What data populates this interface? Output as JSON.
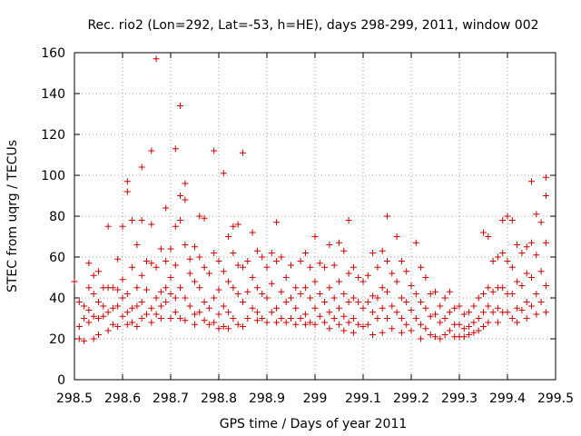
{
  "chart_data": {
    "type": "scatter",
    "title": "Rec. rio2 (Lon=292, Lat=-53, h=HE), days 298-299, 2011, window 002",
    "xlabel": "GPS time / Days of year 2011",
    "ylabel": "STEC from uqrg / TECUs",
    "xlim": [
      298.5,
      299.5
    ],
    "ylim": [
      0,
      160
    ],
    "xticks": [
      "298.5",
      "298.6",
      "298.7",
      "298.8",
      "298.9",
      "299",
      "299.1",
      "299.2",
      "299.3",
      "299.4",
      "299.5"
    ],
    "yticks": [
      "0",
      "20",
      "40",
      "60",
      "80",
      "100",
      "120",
      "140",
      "160"
    ],
    "grid": "dotted",
    "marker": "+",
    "color": "#cc0000",
    "points": [
      [
        298.5,
        48
      ],
      [
        298.51,
        38
      ],
      [
        298.51,
        26
      ],
      [
        298.51,
        20
      ],
      [
        298.52,
        36
      ],
      [
        298.52,
        30
      ],
      [
        298.52,
        19
      ],
      [
        298.53,
        57
      ],
      [
        298.53,
        45
      ],
      [
        298.53,
        34
      ],
      [
        298.53,
        28
      ],
      [
        298.54,
        51
      ],
      [
        298.54,
        42
      ],
      [
        298.54,
        31
      ],
      [
        298.54,
        20
      ],
      [
        298.55,
        53
      ],
      [
        298.55,
        38
      ],
      [
        298.55,
        30
      ],
      [
        298.55,
        22
      ],
      [
        298.56,
        45
      ],
      [
        298.56,
        36
      ],
      [
        298.56,
        31
      ],
      [
        298.57,
        75
      ],
      [
        298.57,
        45
      ],
      [
        298.57,
        33
      ],
      [
        298.57,
        24
      ],
      [
        298.58,
        45
      ],
      [
        298.58,
        35
      ],
      [
        298.58,
        27
      ],
      [
        298.59,
        59
      ],
      [
        298.59,
        44
      ],
      [
        298.59,
        36
      ],
      [
        298.59,
        26
      ],
      [
        298.6,
        75
      ],
      [
        298.6,
        49
      ],
      [
        298.6,
        40
      ],
      [
        298.6,
        31
      ],
      [
        298.61,
        97
      ],
      [
        298.61,
        92
      ],
      [
        298.61,
        42
      ],
      [
        298.61,
        33
      ],
      [
        298.61,
        27
      ],
      [
        298.62,
        78
      ],
      [
        298.62,
        55
      ],
      [
        298.62,
        35
      ],
      [
        298.62,
        28
      ],
      [
        298.63,
        66
      ],
      [
        298.63,
        45
      ],
      [
        298.63,
        36
      ],
      [
        298.63,
        26
      ],
      [
        298.64,
        104
      ],
      [
        298.64,
        78
      ],
      [
        298.64,
        51
      ],
      [
        298.64,
        38
      ],
      [
        298.64,
        30
      ],
      [
        298.65,
        58
      ],
      [
        298.65,
        44
      ],
      [
        298.65,
        32
      ],
      [
        298.66,
        112
      ],
      [
        298.66,
        76
      ],
      [
        298.66,
        57
      ],
      [
        298.66,
        35
      ],
      [
        298.66,
        28
      ],
      [
        298.67,
        157
      ],
      [
        298.67,
        55
      ],
      [
        298.67,
        40
      ],
      [
        298.67,
        32
      ],
      [
        298.68,
        64
      ],
      [
        298.68,
        43
      ],
      [
        298.68,
        36
      ],
      [
        298.68,
        30
      ],
      [
        298.69,
        84
      ],
      [
        298.69,
        58
      ],
      [
        298.69,
        45
      ],
      [
        298.69,
        38
      ],
      [
        298.7,
        64
      ],
      [
        298.7,
        50
      ],
      [
        298.7,
        42
      ],
      [
        298.7,
        30
      ],
      [
        298.71,
        113
      ],
      [
        298.71,
        75
      ],
      [
        298.71,
        56
      ],
      [
        298.71,
        40
      ],
      [
        298.71,
        33
      ],
      [
        298.72,
        134
      ],
      [
        298.72,
        90
      ],
      [
        298.72,
        78
      ],
      [
        298.72,
        45
      ],
      [
        298.72,
        30
      ],
      [
        298.73,
        96
      ],
      [
        298.73,
        88
      ],
      [
        298.73,
        66
      ],
      [
        298.73,
        40
      ],
      [
        298.73,
        29
      ],
      [
        298.74,
        59
      ],
      [
        298.74,
        52
      ],
      [
        298.74,
        36
      ],
      [
        298.75,
        65
      ],
      [
        298.75,
        48
      ],
      [
        298.75,
        32
      ],
      [
        298.75,
        27
      ],
      [
        298.76,
        80
      ],
      [
        298.76,
        60
      ],
      [
        298.76,
        45
      ],
      [
        298.76,
        33
      ],
      [
        298.77,
        79
      ],
      [
        298.77,
        55
      ],
      [
        298.77,
        38
      ],
      [
        298.77,
        29
      ],
      [
        298.78,
        52
      ],
      [
        298.78,
        35
      ],
      [
        298.78,
        27
      ],
      [
        298.79,
        112
      ],
      [
        298.79,
        62
      ],
      [
        298.79,
        40
      ],
      [
        298.79,
        28
      ],
      [
        298.8,
        58
      ],
      [
        298.8,
        44
      ],
      [
        298.8,
        32
      ],
      [
        298.8,
        25
      ],
      [
        298.81,
        101
      ],
      [
        298.81,
        53
      ],
      [
        298.81,
        36
      ],
      [
        298.81,
        26
      ],
      [
        298.82,
        70
      ],
      [
        298.82,
        48
      ],
      [
        298.82,
        33
      ],
      [
        298.82,
        25
      ],
      [
        298.83,
        75
      ],
      [
        298.83,
        62
      ],
      [
        298.83,
        45
      ],
      [
        298.83,
        30
      ],
      [
        298.84,
        76
      ],
      [
        298.84,
        56
      ],
      [
        298.84,
        42
      ],
      [
        298.84,
        27
      ],
      [
        298.85,
        111
      ],
      [
        298.85,
        55
      ],
      [
        298.85,
        38
      ],
      [
        298.85,
        26
      ],
      [
        298.86,
        58
      ],
      [
        298.86,
        43
      ],
      [
        298.86,
        30
      ],
      [
        298.87,
        72
      ],
      [
        298.87,
        50
      ],
      [
        298.87,
        35
      ],
      [
        298.88,
        63
      ],
      [
        298.88,
        45
      ],
      [
        298.88,
        33
      ],
      [
        298.88,
        29
      ],
      [
        298.89,
        60
      ],
      [
        298.89,
        42
      ],
      [
        298.89,
        30
      ],
      [
        298.9,
        55
      ],
      [
        298.9,
        40
      ],
      [
        298.9,
        28
      ],
      [
        298.91,
        62
      ],
      [
        298.91,
        47
      ],
      [
        298.91,
        33
      ],
      [
        298.92,
        77
      ],
      [
        298.92,
        58
      ],
      [
        298.92,
        35
      ],
      [
        298.92,
        28
      ],
      [
        298.93,
        60
      ],
      [
        298.93,
        43
      ],
      [
        298.93,
        30
      ],
      [
        298.94,
        50
      ],
      [
        298.94,
        38
      ],
      [
        298.94,
        28
      ],
      [
        298.95,
        56
      ],
      [
        298.95,
        40
      ],
      [
        298.95,
        30
      ],
      [
        298.96,
        45
      ],
      [
        298.96,
        35
      ],
      [
        298.96,
        27
      ],
      [
        298.97,
        58
      ],
      [
        298.97,
        42
      ],
      [
        298.97,
        30
      ],
      [
        298.98,
        62
      ],
      [
        298.98,
        45
      ],
      [
        298.98,
        32
      ],
      [
        298.98,
        27
      ],
      [
        298.99,
        55
      ],
      [
        298.99,
        40
      ],
      [
        298.99,
        28
      ],
      [
        299.0,
        70
      ],
      [
        299.0,
        48
      ],
      [
        299.0,
        35
      ],
      [
        299.0,
        27
      ],
      [
        299.01,
        57
      ],
      [
        299.01,
        42
      ],
      [
        299.01,
        31
      ],
      [
        299.02,
        55
      ],
      [
        299.02,
        38
      ],
      [
        299.02,
        28
      ],
      [
        299.03,
        66
      ],
      [
        299.03,
        45
      ],
      [
        299.03,
        33
      ],
      [
        299.03,
        25
      ],
      [
        299.04,
        56
      ],
      [
        299.04,
        40
      ],
      [
        299.04,
        30
      ],
      [
        299.05,
        67
      ],
      [
        299.05,
        48
      ],
      [
        299.05,
        35
      ],
      [
        299.05,
        27
      ],
      [
        299.06,
        63
      ],
      [
        299.06,
        42
      ],
      [
        299.06,
        31
      ],
      [
        299.06,
        24
      ],
      [
        299.07,
        78
      ],
      [
        299.07,
        52
      ],
      [
        299.07,
        38
      ],
      [
        299.07,
        28
      ],
      [
        299.08,
        55
      ],
      [
        299.08,
        40
      ],
      [
        299.08,
        30
      ],
      [
        299.08,
        23
      ],
      [
        299.09,
        50
      ],
      [
        299.09,
        38
      ],
      [
        299.09,
        27
      ],
      [
        299.1,
        48
      ],
      [
        299.1,
        35
      ],
      [
        299.1,
        26
      ],
      [
        299.11,
        51
      ],
      [
        299.11,
        38
      ],
      [
        299.11,
        27
      ],
      [
        299.12,
        62
      ],
      [
        299.12,
        41
      ],
      [
        299.12,
        33
      ],
      [
        299.12,
        22
      ],
      [
        299.13,
        55
      ],
      [
        299.13,
        40
      ],
      [
        299.13,
        30
      ],
      [
        299.14,
        63
      ],
      [
        299.14,
        45
      ],
      [
        299.14,
        35
      ],
      [
        299.14,
        23
      ],
      [
        299.15,
        80
      ],
      [
        299.15,
        58
      ],
      [
        299.15,
        43
      ],
      [
        299.15,
        30
      ],
      [
        299.16,
        52
      ],
      [
        299.16,
        36
      ],
      [
        299.16,
        25
      ],
      [
        299.17,
        70
      ],
      [
        299.17,
        48
      ],
      [
        299.17,
        33
      ],
      [
        299.18,
        58
      ],
      [
        299.18,
        40
      ],
      [
        299.18,
        30
      ],
      [
        299.18,
        23
      ],
      [
        299.19,
        53
      ],
      [
        299.19,
        38
      ],
      [
        299.19,
        27
      ],
      [
        299.2,
        46
      ],
      [
        299.2,
        34
      ],
      [
        299.2,
        24
      ],
      [
        299.21,
        67
      ],
      [
        299.21,
        42
      ],
      [
        299.21,
        30
      ],
      [
        299.22,
        55
      ],
      [
        299.22,
        38
      ],
      [
        299.22,
        27
      ],
      [
        299.22,
        20
      ],
      [
        299.23,
        50
      ],
      [
        299.23,
        35
      ],
      [
        299.23,
        25
      ],
      [
        299.24,
        42
      ],
      [
        299.24,
        31
      ],
      [
        299.24,
        22
      ],
      [
        299.25,
        43
      ],
      [
        299.25,
        32
      ],
      [
        299.25,
        21
      ],
      [
        299.26,
        36
      ],
      [
        299.26,
        28
      ],
      [
        299.26,
        20
      ],
      [
        299.27,
        40
      ],
      [
        299.27,
        30
      ],
      [
        299.27,
        22
      ],
      [
        299.28,
        43
      ],
      [
        299.28,
        33
      ],
      [
        299.28,
        24
      ],
      [
        299.29,
        35
      ],
      [
        299.29,
        27
      ],
      [
        299.29,
        21
      ],
      [
        299.3,
        36
      ],
      [
        299.3,
        27
      ],
      [
        299.3,
        21
      ],
      [
        299.31,
        32
      ],
      [
        299.31,
        25
      ],
      [
        299.31,
        21
      ],
      [
        299.32,
        33
      ],
      [
        299.32,
        26
      ],
      [
        299.32,
        22
      ],
      [
        299.33,
        36
      ],
      [
        299.33,
        28
      ],
      [
        299.33,
        23
      ],
      [
        299.34,
        40
      ],
      [
        299.34,
        30
      ],
      [
        299.34,
        24
      ],
      [
        299.35,
        72
      ],
      [
        299.35,
        42
      ],
      [
        299.35,
        33
      ],
      [
        299.35,
        26
      ],
      [
        299.36,
        70
      ],
      [
        299.36,
        45
      ],
      [
        299.36,
        36
      ],
      [
        299.36,
        28
      ],
      [
        299.37,
        58
      ],
      [
        299.37,
        43
      ],
      [
        299.37,
        33
      ],
      [
        299.38,
        60
      ],
      [
        299.38,
        45
      ],
      [
        299.38,
        35
      ],
      [
        299.38,
        28
      ],
      [
        299.39,
        78
      ],
      [
        299.39,
        62
      ],
      [
        299.39,
        45
      ],
      [
        299.39,
        33
      ],
      [
        299.4,
        80
      ],
      [
        299.4,
        58
      ],
      [
        299.4,
        42
      ],
      [
        299.4,
        33
      ],
      [
        299.41,
        78
      ],
      [
        299.41,
        55
      ],
      [
        299.41,
        42
      ],
      [
        299.41,
        30
      ],
      [
        299.42,
        66
      ],
      [
        299.42,
        48
      ],
      [
        299.42,
        35
      ],
      [
        299.42,
        28
      ],
      [
        299.43,
        62
      ],
      [
        299.43,
        46
      ],
      [
        299.43,
        34
      ],
      [
        299.44,
        65
      ],
      [
        299.44,
        52
      ],
      [
        299.44,
        38
      ],
      [
        299.44,
        30
      ],
      [
        299.45,
        97
      ],
      [
        299.45,
        67
      ],
      [
        299.45,
        50
      ],
      [
        299.45,
        36
      ],
      [
        299.46,
        81
      ],
      [
        299.46,
        61
      ],
      [
        299.46,
        42
      ],
      [
        299.46,
        32
      ],
      [
        299.47,
        77
      ],
      [
        299.47,
        53
      ],
      [
        299.47,
        38
      ],
      [
        299.48,
        99
      ],
      [
        299.48,
        90
      ],
      [
        299.48,
        67
      ],
      [
        299.48,
        46
      ],
      [
        299.48,
        33
      ]
    ]
  }
}
